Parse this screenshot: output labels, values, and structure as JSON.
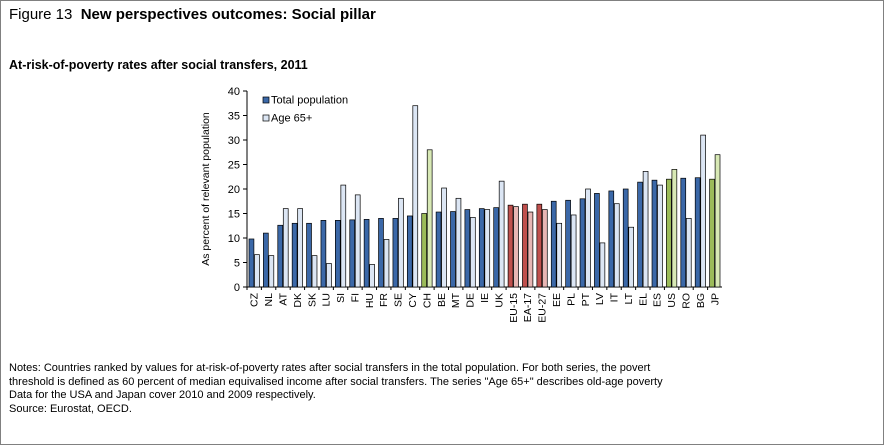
{
  "figure": {
    "number": "Figure 13",
    "title": "New perspectives outcomes: Social pillar"
  },
  "notes": [
    "Notes: Countries ranked by values for at-risk-of-poverty rates after social transfers in the total population. For both series, the povert",
    "threshold is defined as 60 percent of median equivalised income after social transfers. The series \"Age 65+\" describes old-age poverty",
    "Data for the USA and Japan cover 2010 and 2009 respectively."
  ],
  "source": "Source: Eurostat, OECD.",
  "colors": {
    "total": "#3b68a8",
    "age65": "#dce6f4",
    "aggregate_total": "#c0504d",
    "aggregate_age65": "#e8b6b4",
    "non_eu_total": "#9bbb59",
    "non_eu_age65": "#d8e9b5",
    "bar_stroke": "#000000"
  },
  "chart_data": {
    "type": "bar",
    "title": "At-risk-of-poverty rates after social transfers, 2011",
    "ylabel": "As percent of relevant population",
    "xlabel": "",
    "ylim": [
      0,
      40
    ],
    "yticks": [
      0,
      5,
      10,
      15,
      20,
      25,
      30,
      35,
      40
    ],
    "legend_position": "top-left",
    "categories": [
      "CZ",
      "NL",
      "AT",
      "DK",
      "SK",
      "LU",
      "SI",
      "FI",
      "HU",
      "FR",
      "SE",
      "CY",
      "CH",
      "BE",
      "MT",
      "DE",
      "IE",
      "UK",
      "EU-15",
      "EA-17",
      "EU-27",
      "EE",
      "PL",
      "PT",
      "LV",
      "IT",
      "LT",
      "EL",
      "ES",
      "US",
      "RO",
      "BG",
      "JP"
    ],
    "groups": [
      "eu",
      "eu",
      "eu",
      "eu",
      "eu",
      "eu",
      "eu",
      "eu",
      "eu",
      "eu",
      "eu",
      "eu",
      "non-eu",
      "eu",
      "eu",
      "eu",
      "eu",
      "eu",
      "aggregate",
      "aggregate",
      "aggregate",
      "eu",
      "eu",
      "eu",
      "eu",
      "eu",
      "eu",
      "eu",
      "eu",
      "non-eu",
      "eu",
      "eu",
      "non-eu"
    ],
    "series": [
      {
        "name": "Total population",
        "values": [
          9.8,
          11.0,
          12.6,
          13.0,
          13.0,
          13.6,
          13.6,
          13.7,
          13.8,
          14.0,
          14.0,
          14.5,
          15.0,
          15.3,
          15.4,
          15.8,
          16.0,
          16.2,
          16.7,
          16.9,
          16.9,
          17.5,
          17.7,
          18.0,
          19.1,
          19.6,
          20.0,
          21.4,
          21.8,
          22.0,
          22.2,
          22.3,
          22.0
        ]
      },
      {
        "name": "Age 65+",
        "values": [
          6.6,
          6.4,
          16.0,
          16.0,
          6.4,
          4.8,
          20.8,
          18.8,
          4.6,
          9.7,
          18.1,
          37.0,
          28.0,
          20.2,
          18.1,
          14.2,
          15.8,
          21.6,
          16.4,
          15.3,
          15.8,
          13.0,
          14.7,
          20.0,
          9.0,
          17.0,
          12.2,
          23.6,
          20.8,
          24.0,
          14.0,
          31.0,
          27.0
        ]
      }
    ]
  }
}
